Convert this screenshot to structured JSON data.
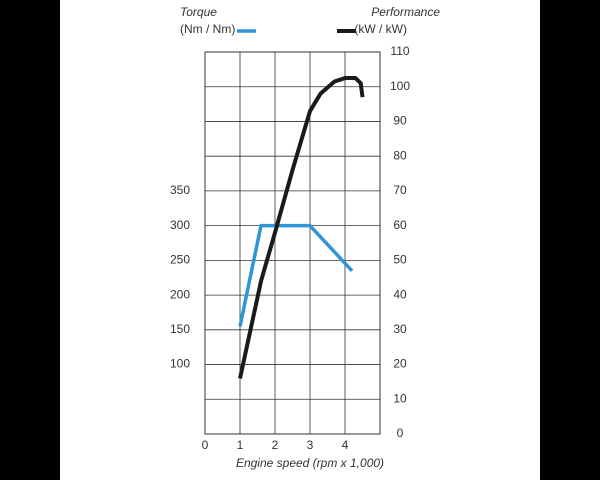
{
  "chart_data": {
    "type": "line",
    "xlabel": "Engine speed (rpm x 1,000)",
    "xlim": [
      0,
      5
    ],
    "xticks": [
      0,
      1,
      2,
      3,
      4
    ],
    "ylim": [
      0,
      550
    ],
    "yticks": [
      100,
      150,
      200,
      250,
      300,
      350
    ],
    "y2lim": [
      0,
      110
    ],
    "y2ticks": [
      0,
      10,
      20,
      30,
      40,
      50,
      60,
      70,
      80,
      90,
      100,
      110
    ],
    "grid": true,
    "series": [
      {
        "name": "Torque",
        "unit": "(Nm / Nm)",
        "color": "#2f95d6",
        "axis": "y",
        "x": [
          1.0,
          1.6,
          3.0,
          4.2
        ],
        "values": [
          155,
          300,
          300,
          235
        ]
      },
      {
        "name": "Performance",
        "unit": "(kW / kW)",
        "color": "#1a1a1a",
        "axis": "y2",
        "x": [
          1.0,
          1.3,
          1.6,
          2.0,
          2.5,
          3.0,
          3.3,
          3.7,
          4.0,
          4.3,
          4.45,
          4.5
        ],
        "values": [
          16,
          30,
          44,
          58,
          76,
          93,
          98,
          101.5,
          102.5,
          102.5,
          101,
          97
        ]
      }
    ]
  }
}
